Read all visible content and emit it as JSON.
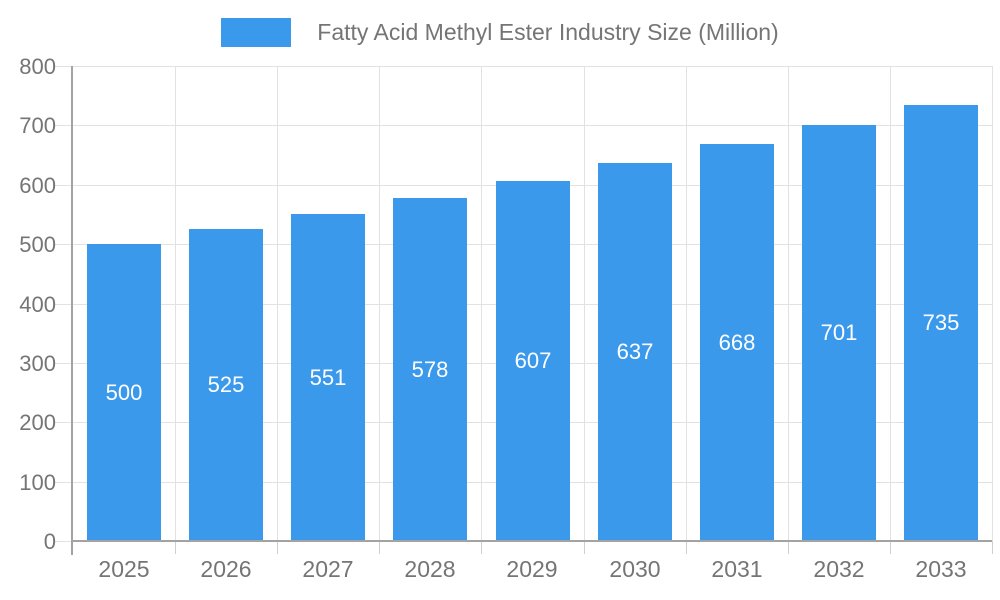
{
  "chart_data": {
    "type": "bar",
    "title": "Fatty Acid Methyl Ester Industry Size (Million)",
    "categories": [
      "2025",
      "2026",
      "2027",
      "2028",
      "2029",
      "2030",
      "2031",
      "2032",
      "2033"
    ],
    "values": [
      500,
      525,
      551,
      578,
      607,
      637,
      668,
      701,
      735
    ],
    "xlabel": "",
    "ylabel": "",
    "ylim": [
      0,
      800
    ],
    "ytick_step": 100,
    "legend_position": "top-center",
    "grid": "horizontal and vertical band boundaries",
    "colors": {
      "bar": "#3B99EC",
      "grid": "#E2E2E2",
      "axis": "#A3A3A3",
      "minor_tick": "#CFCFCF",
      "axis_text": "#757575",
      "title_text": "#757575",
      "value_label": "#FFFFFF",
      "background": "#FFFFFF"
    }
  }
}
